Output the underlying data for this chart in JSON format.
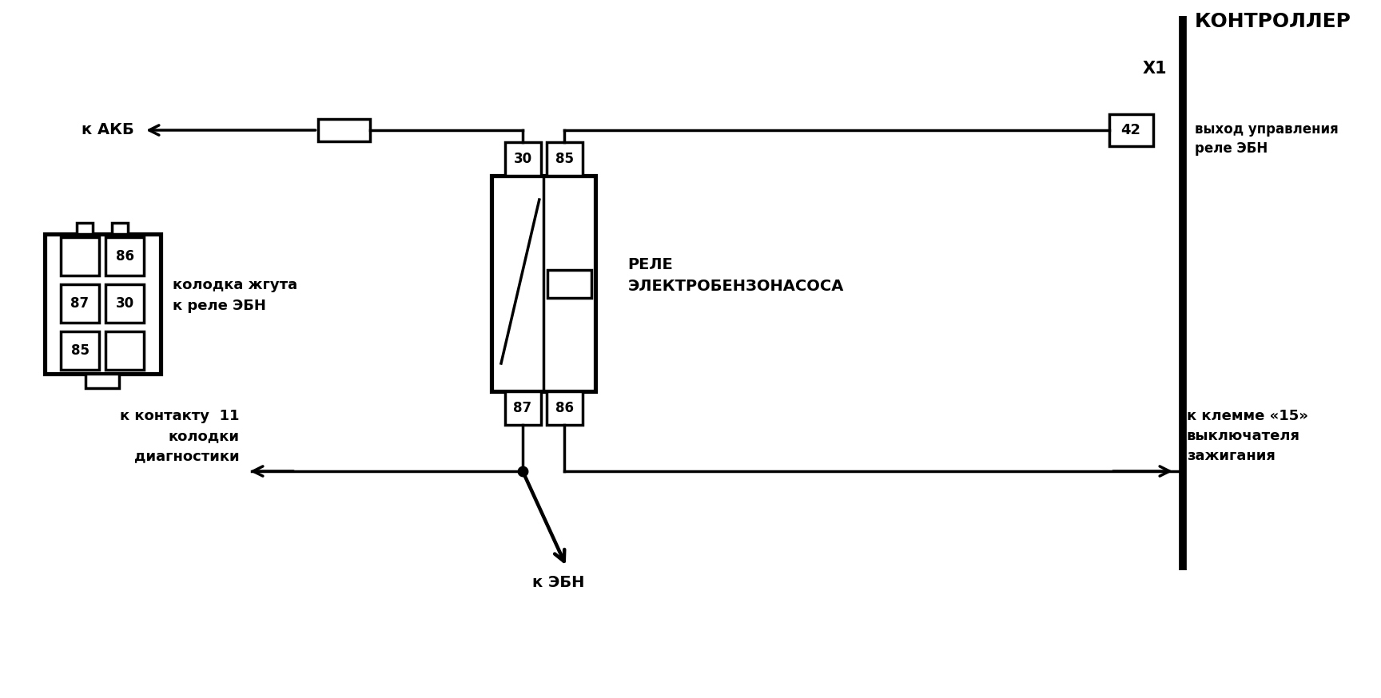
{
  "bg_color": "#ffffff",
  "line_color": "#000000",
  "lw": 2.5,
  "tlw": 7,
  "title_kontroler": "КОНТРОЛЛЕР",
  "label_x1": "X1",
  "label_42": "42",
  "label_vyhod": "выход управления\nреле ЭБН",
  "label_akb": "к АКБ",
  "label_rele": "РЕЛЕ\nЭЛЕКТРОБЕНЗОНАСОСА",
  "label_kolodka": "колодка жгута\nк реле ЭБН",
  "label_kontakt": "к контакту  11\nколодки\nдиагностики",
  "label_klemma": "к клемме «15»\nвыключателя\nзажигания",
  "label_ebn": "к ЭБН",
  "pin_30": "30",
  "pin_85": "85",
  "pin_87": "87",
  "pin_86": "86"
}
